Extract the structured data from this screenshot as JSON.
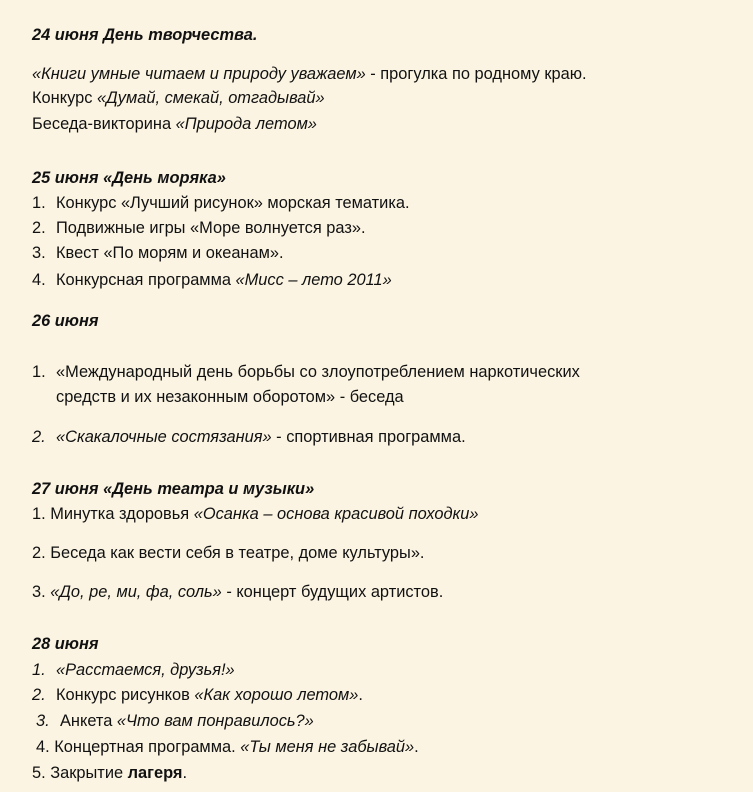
{
  "lines": [
    {
      "type": "heading",
      "runs": [
        {
          "t": "24 июня День творчества.",
          "s": "h"
        }
      ]
    },
    {
      "runs": [
        {
          "t": "«Книги умные читаем и природу уважаем»",
          "s": "i"
        },
        {
          "t": " - прогулка по родному краю."
        }
      ]
    },
    {
      "runs": [
        {
          "t": "Конкурс "
        },
        {
          "t": "«Думай, смекай, отгадывай»",
          "s": "i"
        }
      ]
    },
    {
      "runs": [
        {
          "t": "Беседа-викторина "
        },
        {
          "t": "«Природа летом»",
          "s": "i"
        }
      ]
    },
    {
      "type": "heading",
      "runs": [
        {
          "t": "25 июня «День моряка»",
          "s": "h"
        }
      ]
    },
    {
      "num": "1.",
      "runs": [
        {
          "t": "Конкурс «Лучший рисунок» морская тематика."
        }
      ]
    },
    {
      "num": "2.",
      "runs": [
        {
          "t": "Подвижные игры «Море волнуется раз»."
        }
      ]
    },
    {
      "num": "3.",
      "runs": [
        {
          "t": "Квест «По морям и океанам»."
        }
      ]
    },
    {
      "num": "4.",
      "runs": [
        {
          "t": "Конкурсная программа "
        },
        {
          "t": "«Мисс – лето 2011»",
          "s": "i"
        }
      ]
    },
    {
      "type": "heading",
      "runs": [
        {
          "t": "26 июня",
          "s": "h"
        }
      ]
    },
    {
      "num": "1.",
      "runs": [
        {
          "t": "«Международный день борьбы со злоупотреблением наркотических"
        }
      ]
    },
    {
      "num": "",
      "runs": [
        {
          "t": "средств и их незаконным оборотом» - беседа"
        }
      ]
    },
    {
      "num": "2.",
      "numItalic": true,
      "runs": [
        {
          "t": "«Скакалочные состязания»",
          "s": "i"
        },
        {
          "t": " - спортивная программа."
        }
      ]
    },
    {
      "type": "heading",
      "runs": [
        {
          "t": "27  июня «День театра и музыки»",
          "s": "h"
        }
      ]
    },
    {
      "runs": [
        {
          "t": "1. Минутка здоровья "
        },
        {
          "t": "«Осанка – основа красивой походки»",
          "s": "i"
        }
      ]
    },
    {
      "runs": [
        {
          "t": "2. Беседа как вести себя в театре, доме культуры»."
        }
      ]
    },
    {
      "runs": [
        {
          "t": "3. "
        },
        {
          "t": "«До, ре, ми, фа, соль»",
          "s": "i"
        },
        {
          "t": " - концерт будущих артистов."
        }
      ]
    },
    {
      "type": "heading",
      "runs": [
        {
          "t": "28 июня",
          "s": "h"
        }
      ]
    },
    {
      "num": "1.",
      "numItalic": true,
      "runs": [
        {
          "t": "«Расстаемся, друзья!»",
          "s": "i"
        }
      ]
    },
    {
      "num": "2.",
      "numItalic": true,
      "runs": [
        {
          "t": "Конкурс рисунков "
        },
        {
          "t": "«Как хорошо летом»",
          "s": "i"
        },
        {
          "t": "."
        }
      ]
    },
    {
      "num": "3.",
      "numItalic": true,
      "runs": [
        {
          "t": "Анкета "
        },
        {
          "t": "«Что вам понравилось?»",
          "s": "i"
        }
      ]
    },
    {
      "runs": [
        {
          "t": "4. Концертная программа. "
        },
        {
          "t": "«Ты меня не забывай»",
          "s": "i"
        },
        {
          "t": "."
        }
      ]
    },
    {
      "runs": [
        {
          "t": "5. Закрытие "
        },
        {
          "t": "лагеря",
          "s": "b"
        },
        {
          "t": "."
        }
      ]
    }
  ]
}
